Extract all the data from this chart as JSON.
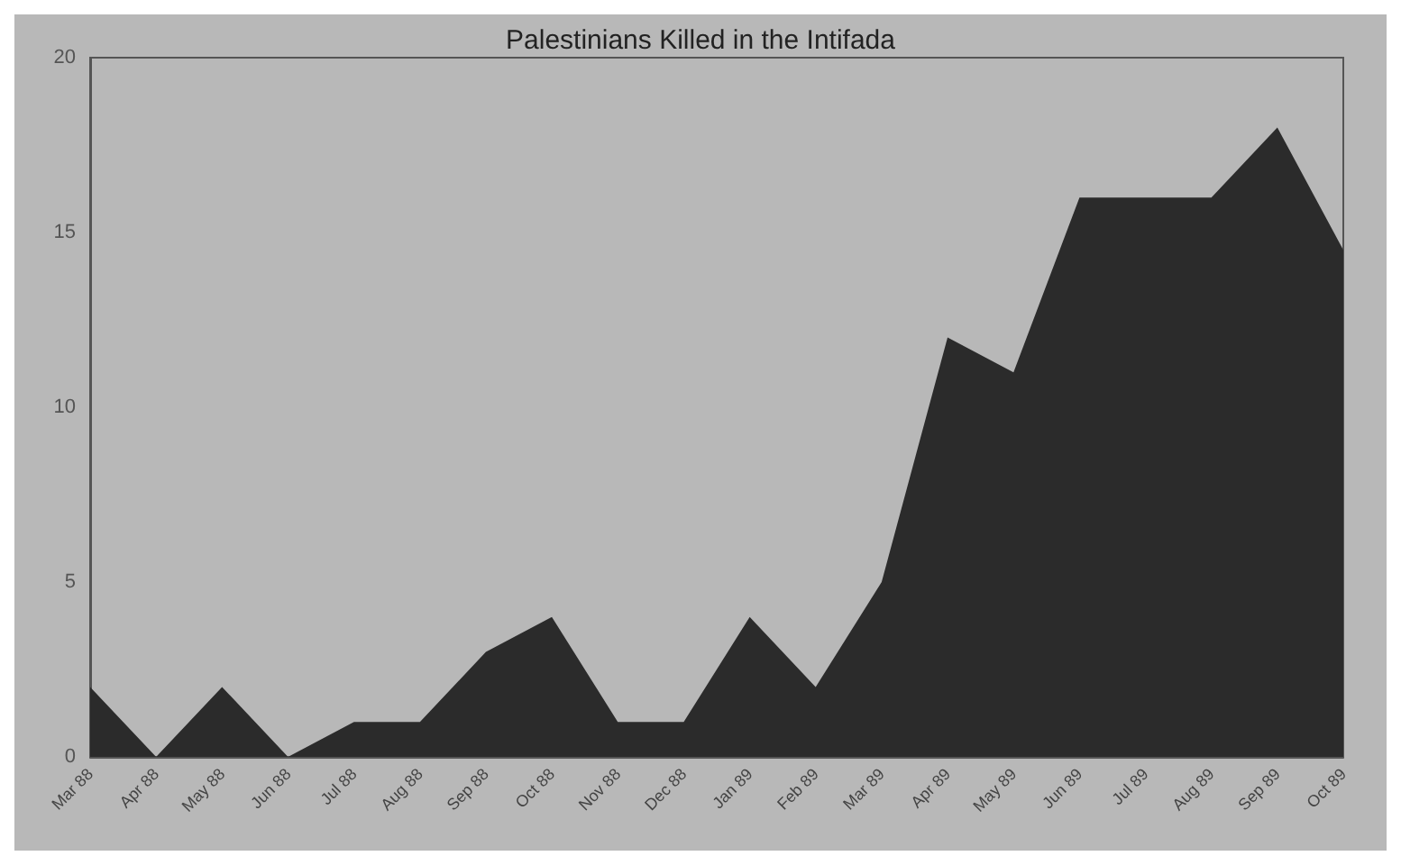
{
  "chart_data": {
    "type": "area",
    "title": "Palestinians Killed in the Intifada",
    "categories": [
      "Mar 88",
      "Apr 88",
      "May 88",
      "Jun 88",
      "Jul 88",
      "Aug 88",
      "Sep 88",
      "Oct 88",
      "Nov 88",
      "Dec 88",
      "Jan 89",
      "Feb 89",
      "Mar 89",
      "Apr 89",
      "May 89",
      "Jun 89",
      "Jul 89",
      "Aug 89",
      "Sep 89",
      "Oct 89"
    ],
    "series": [
      {
        "color": "#2b2b2b",
        "values": [
          2,
          0,
          2,
          0,
          1,
          1,
          3,
          4,
          1,
          1,
          4,
          2,
          5,
          12,
          11,
          16,
          16,
          16,
          18,
          14.5
        ]
      }
    ],
    "ylim": [
      0,
      20
    ],
    "yticks": [
      0,
      5,
      10,
      15,
      20
    ],
    "grid": false
  }
}
